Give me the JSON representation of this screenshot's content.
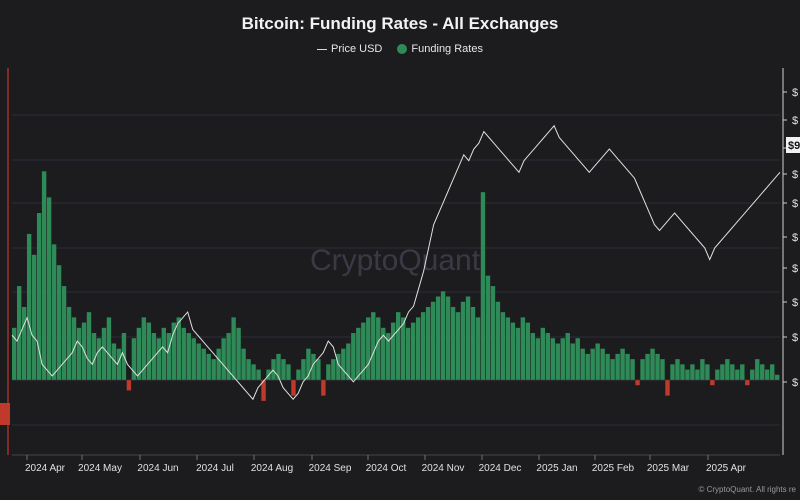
{
  "chart_data": {
    "type": "bar",
    "title": "Bitcoin: Funding Rates - All Exchanges",
    "legend": [
      "Price USD",
      "Funding Rates"
    ],
    "legend_placement": "top-center",
    "watermark": "CryptoQuant",
    "credit": "© CryptoQuant. All rights re",
    "price_badge": "$9",
    "x_tick_labels": [
      "2024 Apr",
      "2024 May",
      "2024 Jun",
      "2024 Jul",
      "2024 Aug",
      "2024 Sep",
      "2024 Oct",
      "2024 Nov",
      "2024 Dec",
      "2025 Jan",
      "2025 Feb",
      "2025 Mar",
      "2025 Apr"
    ],
    "right_axis_tick_labels": [
      "$",
      "$",
      "$",
      "$",
      "$",
      "$",
      "$",
      "$",
      "$",
      "$"
    ],
    "colors": {
      "funding_positive": "#2e8b57",
      "funding_negative": "#c0392b",
      "price": "#e0e0e0",
      "background": "#1c1c1f"
    },
    "series": [
      {
        "name": "Price USD",
        "type": "line",
        "values": [
          67,
          66,
          68,
          70,
          67,
          66,
          62,
          61,
          60,
          61,
          62,
          63,
          64,
          66,
          65,
          63,
          62,
          64,
          65,
          64,
          63,
          62,
          64,
          62,
          61,
          60,
          61,
          62,
          63,
          64,
          65,
          64,
          67,
          69,
          70,
          71,
          68,
          67,
          66,
          65,
          64,
          63,
          62,
          61,
          60,
          59,
          58,
          57,
          56,
          58,
          59,
          60,
          61,
          60,
          58,
          57,
          56,
          57,
          59,
          60,
          62,
          63,
          64,
          66,
          65,
          62,
          61,
          60,
          59,
          60,
          61,
          62,
          64,
          66,
          67,
          66,
          67,
          68,
          69,
          71,
          72,
          75,
          78,
          82,
          86,
          88,
          90,
          92,
          94,
          96,
          98,
          97,
          99,
          100,
          102,
          101,
          100,
          99,
          98,
          97,
          96,
          95,
          97,
          98,
          99,
          100,
          101,
          102,
          103,
          101,
          100,
          99,
          98,
          97,
          96,
          95,
          96,
          97,
          98,
          99,
          98,
          97,
          96,
          95,
          94,
          92,
          90,
          88,
          86,
          85,
          86,
          87,
          88,
          87,
          86,
          85,
          84,
          83,
          82,
          80,
          82,
          83,
          84,
          85,
          86,
          87,
          88,
          89,
          90,
          91,
          92,
          93,
          94,
          95
        ],
        "y_range": [
          49,
          110
        ]
      },
      {
        "name": "Funding Rates",
        "type": "bar",
        "values": [
          0.01,
          0.018,
          0.014,
          0.028,
          0.024,
          0.032,
          0.04,
          0.035,
          0.026,
          0.022,
          0.018,
          0.014,
          0.012,
          0.01,
          0.011,
          0.013,
          0.009,
          0.008,
          0.01,
          0.012,
          0.007,
          0.006,
          0.009,
          -0.002,
          0.008,
          0.01,
          0.012,
          0.011,
          0.009,
          0.008,
          0.01,
          0.009,
          0.011,
          0.012,
          0.01,
          0.009,
          0.008,
          0.007,
          0.006,
          0.005,
          0.004,
          0.006,
          0.008,
          0.009,
          0.012,
          0.01,
          0.006,
          0.004,
          0.003,
          0.002,
          -0.004,
          0.002,
          0.004,
          0.005,
          0.004,
          0.003,
          -0.003,
          0.002,
          0.004,
          0.006,
          0.005,
          0.004,
          -0.003,
          0.003,
          0.004,
          0.005,
          0.006,
          0.007,
          0.009,
          0.01,
          0.011,
          0.012,
          0.013,
          0.012,
          0.01,
          0.009,
          0.011,
          0.013,
          0.012,
          0.01,
          0.011,
          0.012,
          0.013,
          0.014,
          0.015,
          0.016,
          0.017,
          0.016,
          0.014,
          0.013,
          0.015,
          0.016,
          0.014,
          0.012,
          0.036,
          0.02,
          0.018,
          0.015,
          0.013,
          0.012,
          0.011,
          0.01,
          0.012,
          0.011,
          0.009,
          0.008,
          0.01,
          0.009,
          0.008,
          0.007,
          0.008,
          0.009,
          0.007,
          0.008,
          0.006,
          0.005,
          0.006,
          0.007,
          0.006,
          0.005,
          0.004,
          0.005,
          0.006,
          0.005,
          0.004,
          -0.001,
          0.004,
          0.005,
          0.006,
          0.005,
          0.004,
          -0.003,
          0.003,
          0.004,
          0.003,
          0.002,
          0.003,
          0.002,
          0.004,
          0.003,
          -0.001,
          0.002,
          0.003,
          0.004,
          0.003,
          0.002,
          0.003,
          -0.001,
          0.002,
          0.004,
          0.003,
          0.002,
          0.003,
          0.001
        ],
        "y_range": [
          -0.01,
          0.046
        ]
      }
    ]
  }
}
